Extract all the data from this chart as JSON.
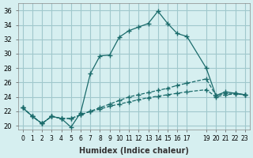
{
  "xlabel": "Humidex (Indice chaleur)",
  "ylabel": "",
  "xlim": [
    -0.5,
    23.5
  ],
  "ylim": [
    19.5,
    37
  ],
  "xticks": [
    0,
    1,
    2,
    3,
    4,
    5,
    6,
    7,
    8,
    9,
    10,
    11,
    12,
    13,
    14,
    15,
    16,
    17,
    19,
    20,
    21,
    22,
    23
  ],
  "yticks": [
    20,
    22,
    24,
    26,
    28,
    30,
    32,
    34,
    36
  ],
  "bg_color": "#d6eff0",
  "grid_color": "#a0c8cc",
  "line_color": "#1a6b6b",
  "lines": [
    {
      "x": [
        0,
        1,
        2,
        3,
        4,
        5,
        6,
        7,
        8,
        9,
        10,
        11,
        12,
        13,
        14,
        15,
        16,
        17,
        19,
        20,
        21,
        22,
        23
      ],
      "y": [
        22.5,
        21.3,
        20.3,
        21.3,
        21.0,
        19.8,
        21.8,
        27.2,
        29.7,
        29.8,
        32.3,
        33.2,
        33.7,
        34.2,
        35.9,
        34.2,
        32.8,
        32.4,
        28.0,
        24.2,
        24.7,
        24.5,
        24.3
      ]
    },
    {
      "x": [
        0,
        1,
        2,
        3,
        4,
        5,
        6,
        7,
        8,
        9,
        10,
        11,
        12,
        13,
        14,
        15,
        16,
        17,
        19,
        20,
        21,
        22,
        23
      ],
      "y": [
        22.5,
        21.3,
        20.3,
        21.3,
        21.0,
        21.0,
        21.5,
        22.0,
        22.5,
        23.0,
        23.5,
        24.0,
        24.3,
        24.6,
        24.9,
        25.2,
        25.6,
        25.9,
        26.5,
        24.2,
        24.5,
        24.5,
        24.3
      ]
    },
    {
      "x": [
        0,
        1,
        2,
        3,
        4,
        5,
        6,
        7,
        8,
        9,
        10,
        11,
        12,
        13,
        14,
        15,
        16,
        17,
        19,
        20,
        21,
        22,
        23
      ],
      "y": [
        22.5,
        21.3,
        20.3,
        21.3,
        21.0,
        21.0,
        21.5,
        22.0,
        22.3,
        22.7,
        23.0,
        23.3,
        23.6,
        23.9,
        24.1,
        24.3,
        24.5,
        24.7,
        25.0,
        24.0,
        24.3,
        24.4,
        24.3
      ]
    }
  ]
}
